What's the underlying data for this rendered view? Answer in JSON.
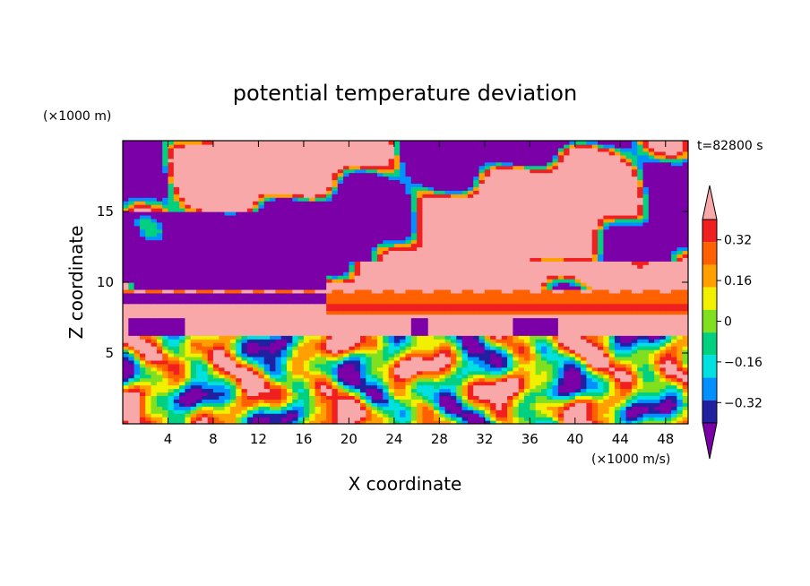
{
  "chart_data": {
    "type": "heatmap",
    "title": "potential temperature deviation",
    "xlabel": "X coordinate",
    "ylabel": "Z coordinate",
    "x_unit": "(×1000 m/s)",
    "y_unit": "(×1000 m)",
    "time_label": "t=82800 s",
    "xlim": [
      0,
      50
    ],
    "ylim": [
      0,
      20
    ],
    "x_ticks": [
      4,
      8,
      12,
      16,
      20,
      24,
      28,
      32,
      36,
      40,
      44,
      48
    ],
    "y_ticks": [
      5,
      10,
      15
    ],
    "colorbar": {
      "levels": [
        -0.4,
        -0.32,
        -0.24,
        -0.16,
        -0.08,
        0,
        0.08,
        0.16,
        0.24,
        0.32,
        0.4
      ],
      "tick_labels": [
        "−0.32",
        "−0.16",
        "0",
        "0.16",
        "0.32"
      ],
      "tick_values": [
        -0.32,
        -0.16,
        0,
        0.16,
        0.32
      ],
      "colors": [
        "#7b00a8",
        "#2020a0",
        "#0090ff",
        "#00e0e0",
        "#00d080",
        "#80e020",
        "#f0f000",
        "#ffa000",
        "#ff6000",
        "#f02020",
        "#f8a8a8"
      ],
      "extend": "both"
    },
    "layers": [
      {
        "z_range": [
          0,
          6.3
        ],
        "description_value": "alternating eddies between -0.4 and 0.4"
      },
      {
        "z_range": [
          6.3,
          9.0
        ],
        "value": 0.4
      },
      {
        "z_range": [
          7.8,
          9.4
        ],
        "value": 0.2
      },
      {
        "z_range": [
          9.4,
          20
        ],
        "value": "mixed pink (>0.4) and purple (<-0.4) regions"
      }
    ],
    "grid": false,
    "legend": "colorbar-right"
  }
}
